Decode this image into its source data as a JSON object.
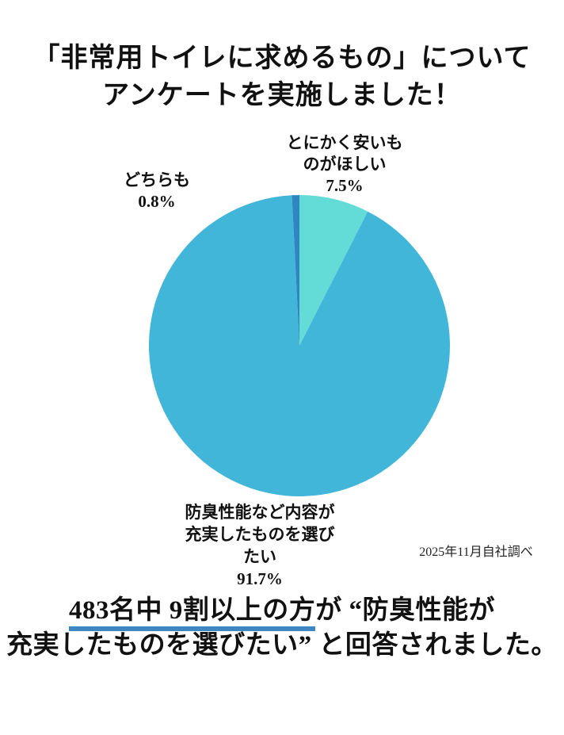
{
  "title": {
    "line1": "「非常用トイレに求めるもの」について",
    "line2": "アンケートを実施しました！"
  },
  "chart_data": {
    "type": "pie",
    "title": "「非常用トイレに求めるもの」についてアンケートを実施しました！",
    "slices": [
      {
        "label": "とにかく安いものがほしい",
        "value": 7.5,
        "color": "#63dcd8"
      },
      {
        "label": "防臭性能など内容が充実したものを選びたい",
        "value": 91.7,
        "color": "#42b6d8"
      },
      {
        "label": "どちらも",
        "value": 0.8,
        "color": "#2e87c1"
      }
    ],
    "start_angle_deg": 0,
    "direction": "clockwise",
    "legend": "none",
    "value_suffix": "%"
  },
  "pie_labels": {
    "cheap_line1": "とにかく安いも",
    "cheap_line2": "のがほしい",
    "cheap_value": "7.5%",
    "both_line1": "どちらも",
    "both_value": "0.8%",
    "main_line1": "防臭性能など内容が",
    "main_line2": "充実したものを選び",
    "main_line3": "たい",
    "main_value": "91.7%"
  },
  "source_note": "2025年11月自社調べ",
  "conclusion": {
    "underlined": "483名中 9割以上の方",
    "line1_rest": "が “防臭性能が",
    "line2": "充実したものを選びたい” と回答されました。"
  },
  "colors": {
    "background": "#ffffff",
    "text": "#111111",
    "underline": "#3f87c0"
  }
}
